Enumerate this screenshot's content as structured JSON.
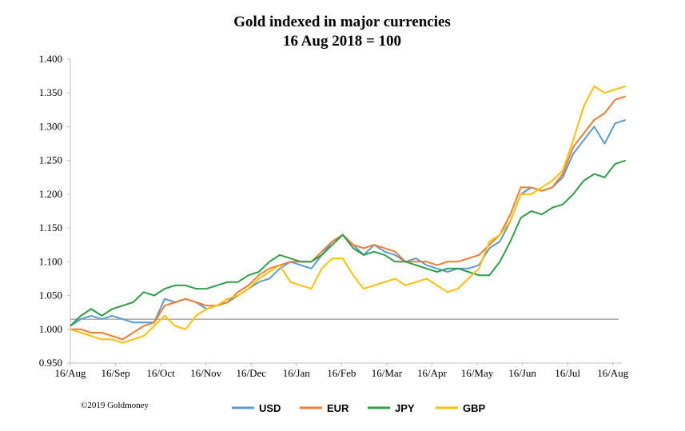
{
  "chart_data": {
    "type": "line",
    "title": "Gold indexed in major currencies",
    "subtitle": "16 Aug 2018 = 100",
    "xlabel": "",
    "ylabel": "",
    "ylim": [
      0.95,
      1.4
    ],
    "yticks": [
      "0.950",
      "1.000",
      "1.050",
      "1.100",
      "1.150",
      "1.200",
      "1.250",
      "1.300",
      "1.350",
      "1.400"
    ],
    "xticks": [
      "16/Aug",
      "16/Sep",
      "16/Oct",
      "16/Nov",
      "16/Dec",
      "16/Jan",
      "16/Feb",
      "16/Mar",
      "16/Apr",
      "16/May",
      "16/Jun",
      "16/Jul",
      "16/Aug"
    ],
    "reference_line": 1.015,
    "grid": false,
    "legend_position": "bottom",
    "credit": "©2019 Goldmoney",
    "series": [
      {
        "name": "USD",
        "color": "#5b9bd5",
        "values": [
          1.005,
          1.015,
          1.02,
          1.015,
          1.02,
          1.015,
          1.01,
          1.01,
          1.01,
          1.045,
          1.04,
          1.045,
          1.04,
          1.03,
          1.035,
          1.04,
          1.05,
          1.06,
          1.07,
          1.075,
          1.09,
          1.1,
          1.095,
          1.09,
          1.11,
          1.13,
          1.14,
          1.125,
          1.11,
          1.125,
          1.115,
          1.11,
          1.1,
          1.105,
          1.095,
          1.09,
          1.085,
          1.09,
          1.09,
          1.095,
          1.12,
          1.13,
          1.16,
          1.2,
          1.21,
          1.205,
          1.21,
          1.225,
          1.26,
          1.28,
          1.3,
          1.275,
          1.305,
          1.31
        ]
      },
      {
        "name": "EUR",
        "color": "#ed7d31",
        "values": [
          1.0,
          1.0,
          0.995,
          0.995,
          0.99,
          0.985,
          0.995,
          1.005,
          1.01,
          1.035,
          1.04,
          1.045,
          1.04,
          1.035,
          1.035,
          1.04,
          1.055,
          1.065,
          1.08,
          1.09,
          1.095,
          1.1,
          1.1,
          1.1,
          1.115,
          1.13,
          1.14,
          1.125,
          1.12,
          1.125,
          1.12,
          1.115,
          1.1,
          1.1,
          1.1,
          1.095,
          1.1,
          1.1,
          1.105,
          1.11,
          1.125,
          1.14,
          1.17,
          1.21,
          1.21,
          1.205,
          1.21,
          1.23,
          1.27,
          1.29,
          1.31,
          1.32,
          1.34,
          1.345
        ]
      },
      {
        "name": "JPY",
        "color": "#2e9e47",
        "values": [
          1.005,
          1.02,
          1.03,
          1.02,
          1.03,
          1.035,
          1.04,
          1.055,
          1.05,
          1.06,
          1.065,
          1.065,
          1.06,
          1.06,
          1.065,
          1.07,
          1.07,
          1.08,
          1.085,
          1.1,
          1.11,
          1.105,
          1.1,
          1.1,
          1.11,
          1.125,
          1.14,
          1.12,
          1.11,
          1.115,
          1.11,
          1.1,
          1.1,
          1.095,
          1.09,
          1.085,
          1.09,
          1.09,
          1.085,
          1.08,
          1.08,
          1.1,
          1.13,
          1.165,
          1.175,
          1.17,
          1.18,
          1.185,
          1.2,
          1.22,
          1.23,
          1.225,
          1.245,
          1.25
        ]
      },
      {
        "name": "GBP",
        "color": "#ffc000",
        "values": [
          1.0,
          0.995,
          0.99,
          0.985,
          0.985,
          0.98,
          0.985,
          0.99,
          1.005,
          1.02,
          1.005,
          1.0,
          1.02,
          1.03,
          1.035,
          1.045,
          1.05,
          1.06,
          1.075,
          1.085,
          1.095,
          1.07,
          1.065,
          1.06,
          1.09,
          1.105,
          1.105,
          1.08,
          1.06,
          1.065,
          1.07,
          1.075,
          1.065,
          1.07,
          1.075,
          1.065,
          1.055,
          1.06,
          1.075,
          1.09,
          1.13,
          1.14,
          1.16,
          1.2,
          1.2,
          1.21,
          1.22,
          1.235,
          1.28,
          1.33,
          1.36,
          1.35,
          1.355,
          1.36
        ]
      }
    ]
  }
}
